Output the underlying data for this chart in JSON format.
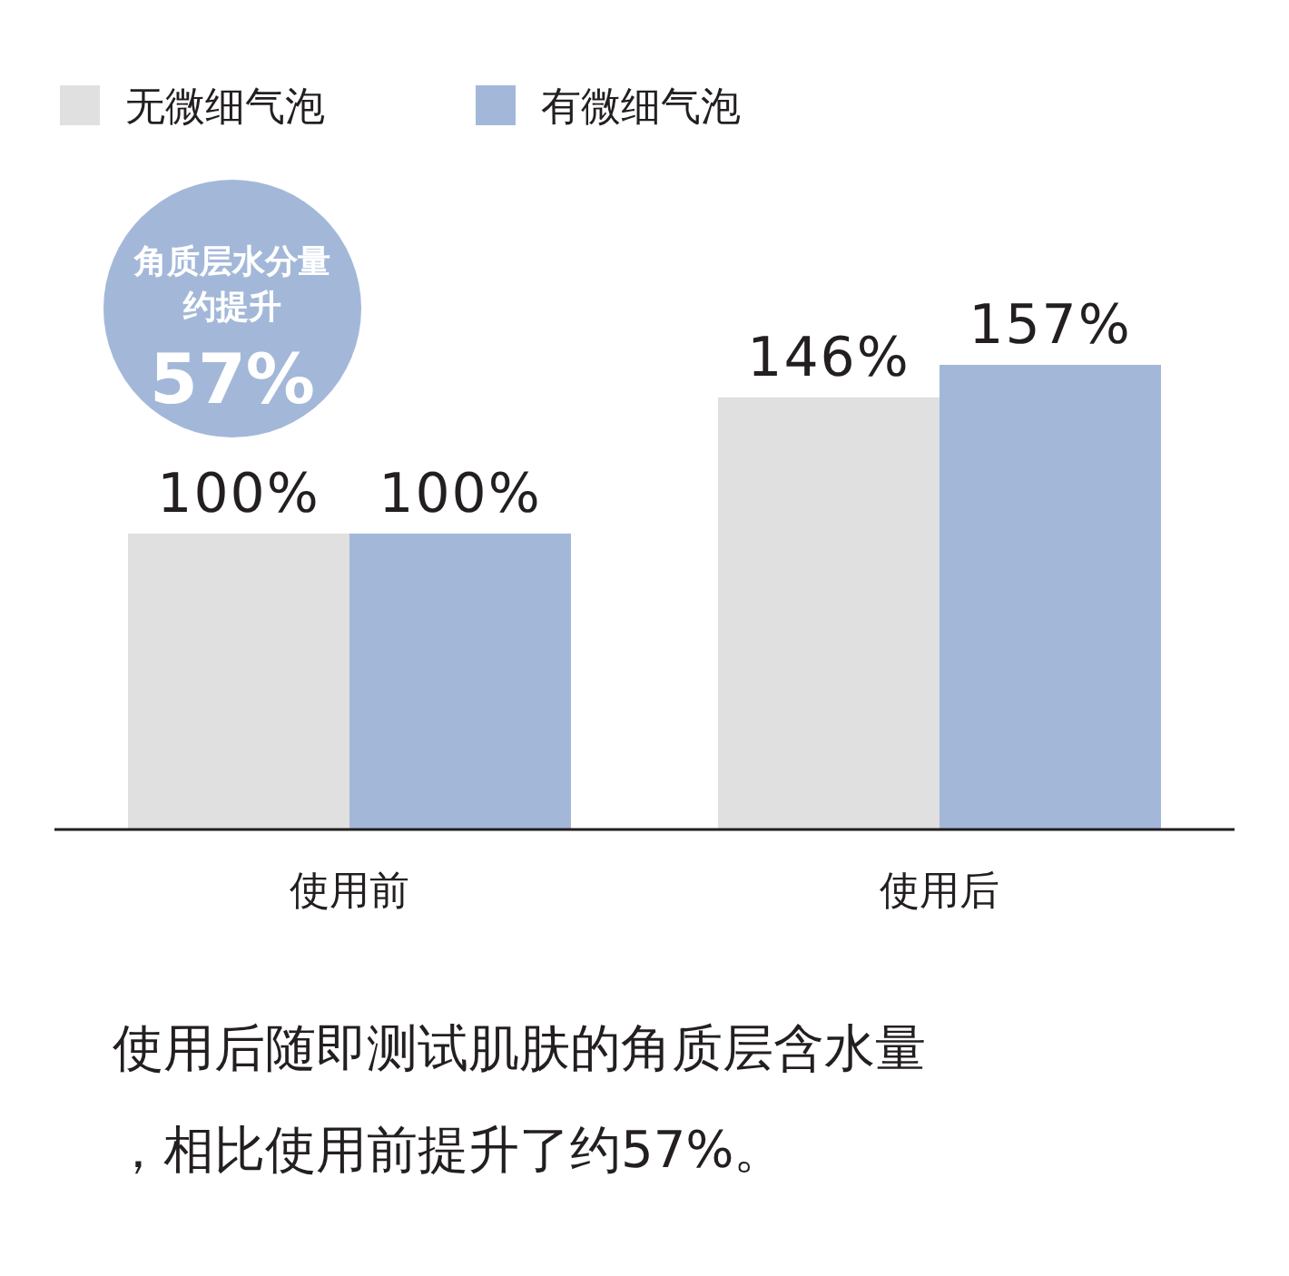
{
  "chart_data": {
    "type": "bar",
    "categories": [
      "使用前",
      "使用后"
    ],
    "series": [
      {
        "name": "无微细气泡",
        "color": "#e0e0e0",
        "values": [
          100,
          146
        ],
        "value_labels": [
          "100%",
          "146%"
        ]
      },
      {
        "name": "有微细气泡",
        "color": "#a3b8d9",
        "values": [
          100,
          157
        ],
        "value_labels": [
          "100%",
          "157%"
        ]
      }
    ],
    "legend": "top left",
    "annotations": [
      "角质层水分量",
      "约提升",
      "57%",
      "使用后随即测试肌肤的角质层含水量，相比使用前提升了约57%。"
    ]
  }
}
